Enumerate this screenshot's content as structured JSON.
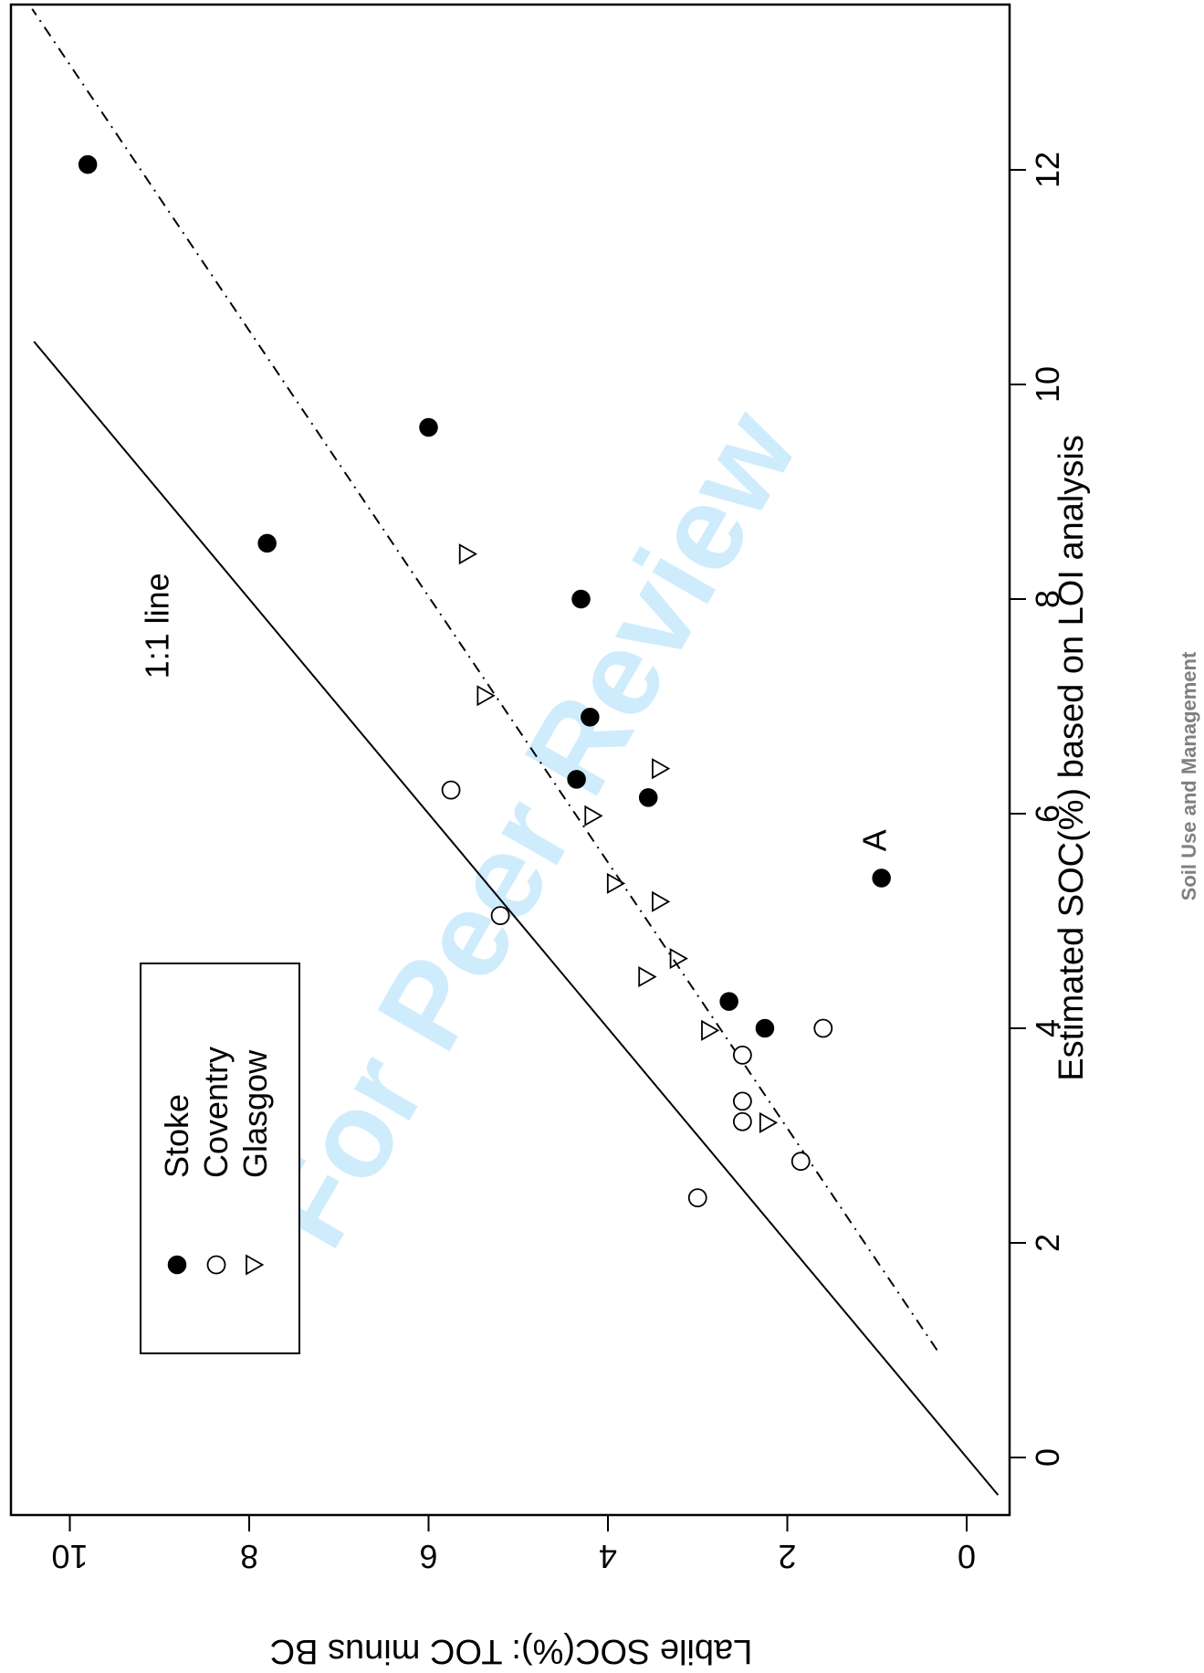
{
  "watermark": "For Peer Review",
  "journal_label": "Soil Use and Management",
  "chart_data": {
    "type": "scatter",
    "rotation": "rotated 90 degrees clockwise",
    "xlabel": "Estimated SOC(%) based on LOI analysis",
    "ylabel": "Labile SOC(%): TOC minus BC",
    "xticks": [
      "0",
      "2",
      "4",
      "6",
      "8",
      "10",
      "12"
    ],
    "yticks": [
      "0",
      "2",
      "4",
      "6",
      "8",
      "10"
    ],
    "xlim": [
      -0.35,
      13.5
    ],
    "ylim": [
      -0.2,
      10.2
    ],
    "legend_placement": "upper-left of plot (unrotated)",
    "series": [
      {
        "name": "Stoke",
        "marker": "filled-circle",
        "x": [
          12.05,
          9.6,
          8.52,
          8.0,
          6.9,
          6.32,
          6.15,
          5.4,
          4.25,
          4.0
        ],
        "y": [
          9.8,
          6.0,
          7.8,
          4.3,
          4.2,
          4.35,
          3.55,
          0.95,
          2.65,
          2.25
        ]
      },
      {
        "name": "Coventry",
        "marker": "open-circle",
        "x": [
          6.22,
          5.05,
          4.0,
          3.75,
          3.32,
          3.13,
          2.76,
          2.42
        ],
        "y": [
          5.75,
          5.2,
          1.6,
          2.5,
          2.5,
          2.5,
          1.85,
          3.0
        ]
      },
      {
        "name": "Glasgow",
        "marker": "open-triangle",
        "x": [
          8.42,
          7.1,
          6.42,
          5.98,
          5.35,
          5.18,
          4.65,
          4.48,
          3.98,
          3.12
        ],
        "y": [
          5.55,
          5.35,
          3.4,
          4.15,
          3.9,
          3.4,
          3.2,
          3.55,
          2.85,
          2.2
        ]
      }
    ],
    "lines": [
      {
        "name": "1:1 line",
        "style": "solid",
        "x": [
          -0.35,
          10.4
        ],
        "y": [
          -0.35,
          10.4
        ]
      },
      {
        "name": "fit",
        "style": "dash-dot",
        "x": [
          1.0,
          13.5
        ],
        "y": [
          0.33,
          10.42
        ]
      }
    ],
    "annotations": [
      {
        "text": "1:1 line",
        "x": 7.75,
        "y": 8.9
      },
      {
        "text": "A",
        "x": 5.75,
        "y": 0.9
      }
    ]
  }
}
